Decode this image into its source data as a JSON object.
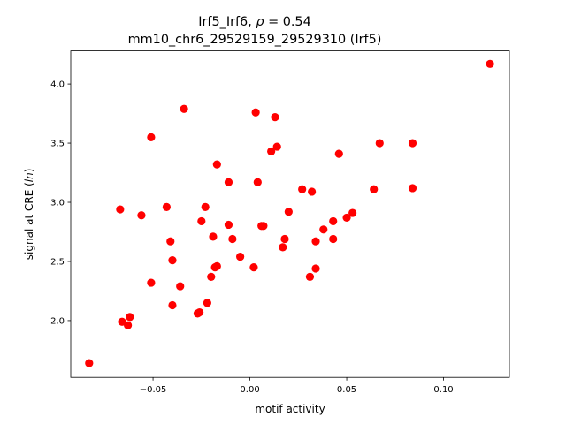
{
  "chart_data": {
    "type": "scatter",
    "title_line1": "Irf5_Irf6, ",
    "title_rho_symbol": "ρ",
    "title_rho_value": " = 0.54",
    "title_line2": "mm10_chr6_29529159_29529310 (Irf5)",
    "xlabel": "motif activity",
    "ylabel_prefix": "signal at CRE (",
    "ylabel_italic": "ln",
    "ylabel_suffix": ")",
    "xlim": [
      -0.0925,
      0.134
    ],
    "ylim": [
      1.52,
      4.28
    ],
    "x_ticks": [
      -0.05,
      0.0,
      0.05,
      0.1
    ],
    "x_tick_labels": [
      "−0.05",
      "0.00",
      "0.05",
      "0.10"
    ],
    "y_ticks": [
      2.0,
      2.5,
      3.0,
      3.5,
      4.0
    ],
    "y_tick_labels": [
      "2.0",
      "2.5",
      "3.0",
      "3.5",
      "4.0"
    ],
    "grid": false,
    "marker_color": "#ff0000",
    "points": [
      {
        "x": -0.083,
        "y": 1.64
      },
      {
        "x": -0.066,
        "y": 1.99
      },
      {
        "x": -0.063,
        "y": 1.96
      },
      {
        "x": -0.062,
        "y": 2.03
      },
      {
        "x": -0.067,
        "y": 2.94
      },
      {
        "x": -0.056,
        "y": 2.89
      },
      {
        "x": -0.051,
        "y": 3.55
      },
      {
        "x": -0.051,
        "y": 2.32
      },
      {
        "x": -0.043,
        "y": 2.96
      },
      {
        "x": -0.041,
        "y": 2.67
      },
      {
        "x": -0.04,
        "y": 2.51
      },
      {
        "x": -0.04,
        "y": 2.13
      },
      {
        "x": -0.036,
        "y": 2.29
      },
      {
        "x": -0.034,
        "y": 3.79
      },
      {
        "x": -0.027,
        "y": 2.06
      },
      {
        "x": -0.026,
        "y": 2.07
      },
      {
        "x": -0.025,
        "y": 2.84
      },
      {
        "x": -0.023,
        "y": 2.96
      },
      {
        "x": -0.022,
        "y": 2.15
      },
      {
        "x": -0.02,
        "y": 2.37
      },
      {
        "x": -0.019,
        "y": 2.71
      },
      {
        "x": -0.018,
        "y": 2.45
      },
      {
        "x": -0.017,
        "y": 3.32
      },
      {
        "x": -0.017,
        "y": 2.46
      },
      {
        "x": -0.011,
        "y": 3.17
      },
      {
        "x": -0.011,
        "y": 2.81
      },
      {
        "x": -0.009,
        "y": 2.69
      },
      {
        "x": -0.005,
        "y": 2.54
      },
      {
        "x": 0.002,
        "y": 2.45
      },
      {
        "x": 0.003,
        "y": 3.76
      },
      {
        "x": 0.004,
        "y": 3.17
      },
      {
        "x": 0.006,
        "y": 2.8
      },
      {
        "x": 0.007,
        "y": 2.8
      },
      {
        "x": 0.011,
        "y": 3.43
      },
      {
        "x": 0.013,
        "y": 3.72
      },
      {
        "x": 0.014,
        "y": 3.47
      },
      {
        "x": 0.017,
        "y": 2.62
      },
      {
        "x": 0.018,
        "y": 2.69
      },
      {
        "x": 0.02,
        "y": 2.92
      },
      {
        "x": 0.027,
        "y": 3.11
      },
      {
        "x": 0.031,
        "y": 2.37
      },
      {
        "x": 0.032,
        "y": 3.09
      },
      {
        "x": 0.034,
        "y": 2.67
      },
      {
        "x": 0.034,
        "y": 2.44
      },
      {
        "x": 0.038,
        "y": 2.77
      },
      {
        "x": 0.043,
        "y": 2.84
      },
      {
        "x": 0.043,
        "y": 2.69
      },
      {
        "x": 0.046,
        "y": 3.41
      },
      {
        "x": 0.05,
        "y": 2.87
      },
      {
        "x": 0.053,
        "y": 2.91
      },
      {
        "x": 0.064,
        "y": 3.11
      },
      {
        "x": 0.067,
        "y": 3.5
      },
      {
        "x": 0.084,
        "y": 3.5
      },
      {
        "x": 0.084,
        "y": 3.12
      },
      {
        "x": 0.124,
        "y": 4.17
      }
    ]
  }
}
